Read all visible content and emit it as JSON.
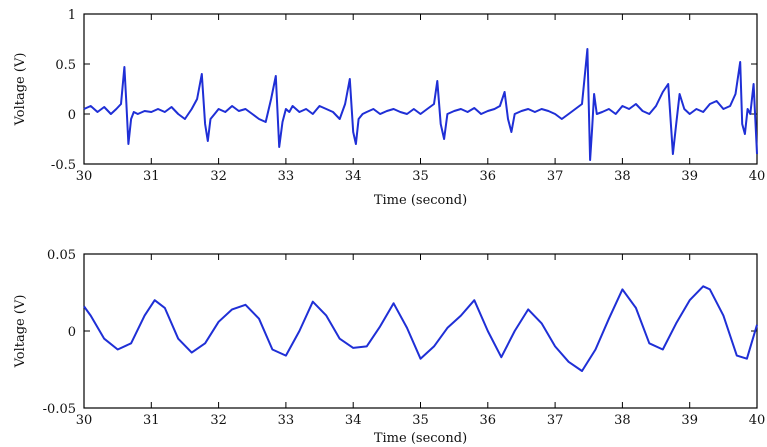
{
  "chart_data": [
    {
      "type": "line",
      "title": "",
      "xlabel": "Time (second)",
      "ylabel": "Voltage (V)",
      "xlim": [
        30,
        40
      ],
      "ylim": [
        -0.5,
        1
      ],
      "xticks": [
        "30",
        "31",
        "32",
        "33",
        "34",
        "35",
        "36",
        "37",
        "38",
        "39",
        "40"
      ],
      "yticks": [
        "-0.5",
        "0",
        "0.5",
        "1"
      ],
      "grid": false,
      "line_color": "#1f2fd6",
      "x": [
        30.0,
        30.1,
        30.2,
        30.3,
        30.4,
        30.48,
        30.55,
        30.6,
        30.63,
        30.66,
        30.7,
        30.74,
        30.8,
        30.9,
        31.0,
        31.1,
        31.2,
        31.3,
        31.4,
        31.5,
        31.6,
        31.68,
        31.75,
        31.8,
        31.84,
        31.88,
        31.94,
        32.0,
        32.1,
        32.2,
        32.3,
        32.4,
        32.5,
        32.6,
        32.7,
        32.78,
        32.85,
        32.9,
        32.95,
        33.0,
        33.05,
        33.1,
        33.2,
        33.3,
        33.4,
        33.5,
        33.6,
        33.7,
        33.8,
        33.88,
        33.95,
        34.0,
        34.04,
        34.08,
        34.14,
        34.2,
        34.3,
        34.4,
        34.5,
        34.6,
        34.7,
        34.8,
        34.9,
        35.0,
        35.1,
        35.2,
        35.25,
        35.3,
        35.35,
        35.4,
        35.5,
        35.6,
        35.7,
        35.8,
        35.9,
        36.0,
        36.1,
        36.18,
        36.25,
        36.3,
        36.35,
        36.4,
        36.5,
        36.6,
        36.7,
        36.8,
        36.9,
        37.0,
        37.1,
        37.2,
        37.3,
        37.4,
        37.48,
        37.52,
        37.55,
        37.58,
        37.62,
        37.7,
        37.8,
        37.9,
        38.0,
        38.1,
        38.2,
        38.3,
        38.4,
        38.5,
        38.6,
        38.68,
        38.75,
        38.8,
        38.85,
        38.92,
        39.0,
        39.1,
        39.2,
        39.3,
        39.4,
        39.5,
        39.6,
        39.68,
        39.75,
        39.78,
        39.82,
        39.86,
        39.9,
        39.95,
        40.0
      ],
      "y": [
        0.05,
        0.08,
        0.02,
        0.07,
        0.0,
        0.05,
        0.1,
        0.47,
        0.1,
        -0.3,
        -0.05,
        0.02,
        0.0,
        0.03,
        0.02,
        0.05,
        0.02,
        0.07,
        0.0,
        -0.05,
        0.05,
        0.15,
        0.4,
        -0.1,
        -0.27,
        -0.05,
        0.0,
        0.05,
        0.02,
        0.08,
        0.03,
        0.05,
        0.0,
        -0.05,
        -0.08,
        0.15,
        0.38,
        -0.33,
        -0.08,
        0.05,
        0.02,
        0.08,
        0.02,
        0.05,
        0.0,
        0.08,
        0.05,
        0.02,
        -0.05,
        0.1,
        0.35,
        -0.18,
        -0.3,
        -0.05,
        0.0,
        0.02,
        0.05,
        0.0,
        0.03,
        0.05,
        0.02,
        0.0,
        0.05,
        0.0,
        0.05,
        0.1,
        0.33,
        -0.1,
        -0.25,
        0.0,
        0.03,
        0.05,
        0.02,
        0.06,
        0.0,
        0.03,
        0.05,
        0.08,
        0.22,
        -0.05,
        -0.18,
        0.0,
        0.03,
        0.05,
        0.02,
        0.05,
        0.03,
        0.0,
        -0.05,
        0.0,
        0.05,
        0.1,
        0.65,
        -0.46,
        -0.15,
        0.2,
        0.0,
        0.02,
        0.05,
        0.0,
        0.08,
        0.05,
        0.1,
        0.03,
        0.0,
        0.08,
        0.22,
        0.3,
        -0.4,
        -0.1,
        0.2,
        0.05,
        0.0,
        0.05,
        0.02,
        0.1,
        0.13,
        0.05,
        0.08,
        0.2,
        0.52,
        -0.1,
        -0.2,
        0.05,
        0.0,
        0.3,
        -0.4
      ]
    },
    {
      "type": "line",
      "title": "",
      "xlabel": "Time (second)",
      "ylabel": "Voltage (V)",
      "xlim": [
        30,
        40
      ],
      "ylim": [
        -0.05,
        0.05
      ],
      "xticks": [
        "30",
        "31",
        "32",
        "33",
        "34",
        "35",
        "36",
        "37",
        "38",
        "39",
        "40"
      ],
      "yticks": [
        "-0.05",
        "0",
        "0.05"
      ],
      "grid": false,
      "line_color": "#1f2fd6",
      "x": [
        30.0,
        30.1,
        30.3,
        30.5,
        30.7,
        30.9,
        31.05,
        31.2,
        31.4,
        31.6,
        31.8,
        32.0,
        32.2,
        32.4,
        32.6,
        32.8,
        33.0,
        33.2,
        33.4,
        33.6,
        33.8,
        34.0,
        34.2,
        34.4,
        34.6,
        34.8,
        35.0,
        35.2,
        35.4,
        35.6,
        35.8,
        36.0,
        36.2,
        36.4,
        36.6,
        36.8,
        37.0,
        37.2,
        37.4,
        37.6,
        37.8,
        38.0,
        38.2,
        38.4,
        38.6,
        38.8,
        39.0,
        39.2,
        39.3,
        39.5,
        39.7,
        39.85,
        40.0
      ],
      "y": [
        0.016,
        0.01,
        -0.005,
        -0.012,
        -0.008,
        0.01,
        0.02,
        0.015,
        -0.005,
        -0.014,
        -0.008,
        0.006,
        0.014,
        0.017,
        0.008,
        -0.012,
        -0.016,
        0.0,
        0.019,
        0.01,
        -0.005,
        -0.011,
        -0.01,
        0.003,
        0.018,
        0.002,
        -0.018,
        -0.01,
        0.002,
        0.01,
        0.02,
        0.0,
        -0.017,
        0.0,
        0.014,
        0.005,
        -0.01,
        -0.02,
        -0.026,
        -0.012,
        0.008,
        0.027,
        0.015,
        -0.008,
        -0.012,
        0.005,
        0.02,
        0.029,
        0.027,
        0.01,
        -0.016,
        -0.018,
        0.004
      ]
    }
  ]
}
